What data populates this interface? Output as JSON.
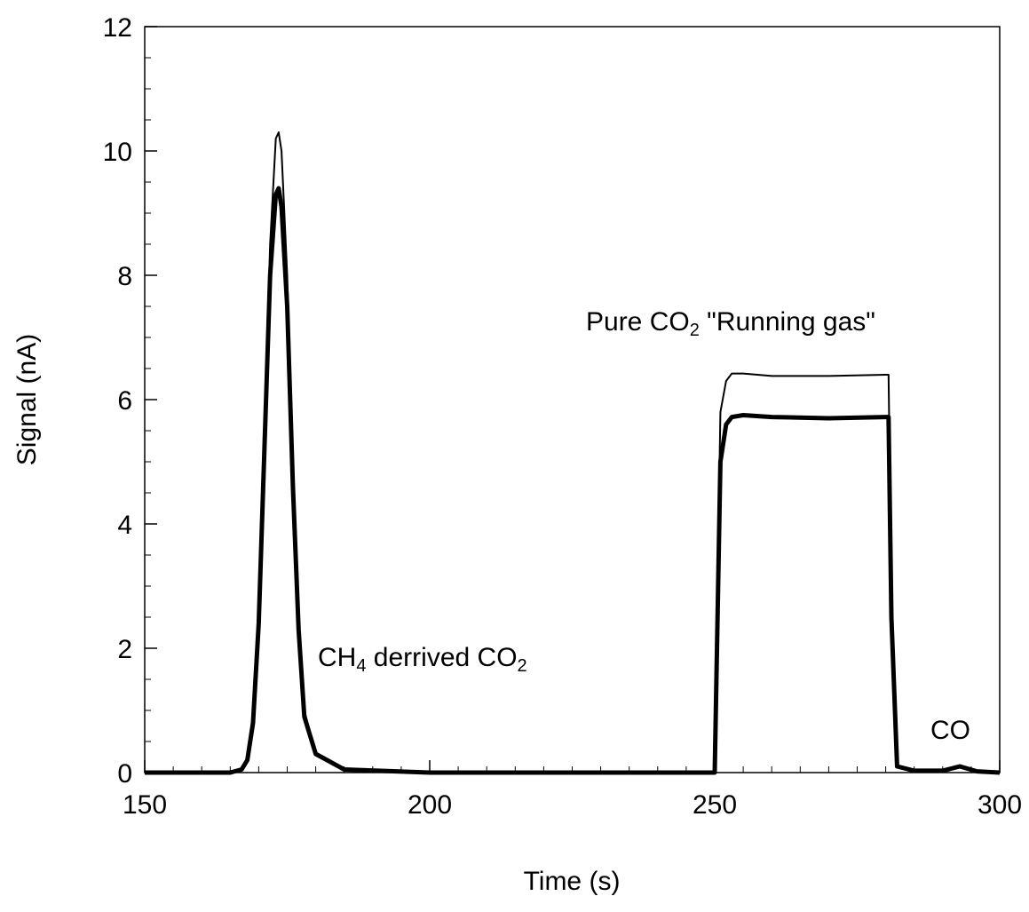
{
  "chart_data": {
    "type": "line",
    "x_label": "Time (s)",
    "y_label": "Signal (nA)",
    "xlim": [
      150,
      300
    ],
    "xticks": [
      150,
      200,
      250,
      300
    ],
    "x_minor_step": 5,
    "ylim": [
      0,
      12
    ],
    "yticks": [
      0,
      2,
      4,
      6,
      8,
      10,
      12
    ],
    "y_minor_step": 0.5,
    "x": [
      150,
      165,
      167,
      168,
      169,
      170,
      171,
      172,
      173,
      173.5,
      174,
      175,
      176,
      177,
      178,
      180,
      185,
      200,
      250,
      250.5,
      251,
      252,
      253,
      255,
      260,
      270,
      280,
      280.5,
      281,
      282,
      285,
      290,
      293,
      296,
      300
    ],
    "series": [
      {
        "color": "#000000",
        "width": 2,
        "values": [
          0,
          0,
          0.05,
          0.2,
          0.8,
          2.5,
          5.5,
          8.5,
          10.2,
          10.3,
          10.0,
          8.0,
          5.0,
          2.5,
          1.0,
          0.3,
          0.05,
          0,
          0,
          3.0,
          5.8,
          6.3,
          6.42,
          6.42,
          6.38,
          6.38,
          6.4,
          6.4,
          3.0,
          0.1,
          0.03,
          0.03,
          0.1,
          0.02,
          0
        ]
      },
      {
        "color": "#000000",
        "width": 5,
        "values": [
          0,
          0,
          0.05,
          0.2,
          0.8,
          2.4,
          5.2,
          8.0,
          9.3,
          9.4,
          9.1,
          7.5,
          4.6,
          2.3,
          0.9,
          0.3,
          0.05,
          0,
          0,
          2.5,
          5.0,
          5.6,
          5.72,
          5.75,
          5.72,
          5.7,
          5.72,
          5.72,
          2.5,
          0.1,
          0.03,
          0.03,
          0.1,
          0.02,
          0
        ]
      }
    ],
    "annotations": [
      [
        {
          "text": "CH"
        },
        {
          "text": "4",
          "sub": true
        },
        {
          "text": " derrived CO"
        },
        {
          "text": "2",
          "sub": true
        }
      ],
      [
        {
          "text": "Pure CO"
        },
        {
          "text": "2",
          "sub": true
        },
        {
          "text": " \"Running gas\""
        }
      ],
      [
        {
          "text": "CO"
        }
      ]
    ]
  }
}
